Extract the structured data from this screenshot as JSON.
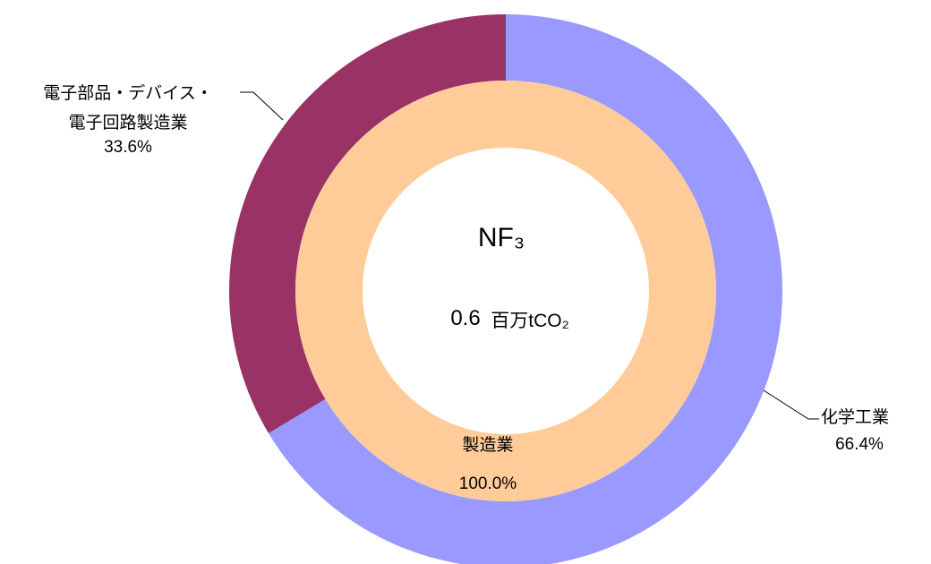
{
  "chart_data": {
    "type": "donut",
    "center_title": "NF₃",
    "center_value": 0.6,
    "center_unit": "百万tCO₂",
    "rings": [
      {
        "categories": [
          "製造業"
        ],
        "values": [
          100.0
        ],
        "value_labels": [
          "100.0%"
        ],
        "colors": [
          "#ffcc99"
        ]
      },
      {
        "categories": [
          "化学工業",
          "電子部品・デバイス・電子回路製造業"
        ],
        "values": [
          66.4,
          33.6
        ],
        "value_labels": [
          "66.4%",
          "33.6%"
        ],
        "colors": [
          "#9999ff",
          "#993366"
        ]
      }
    ]
  }
}
